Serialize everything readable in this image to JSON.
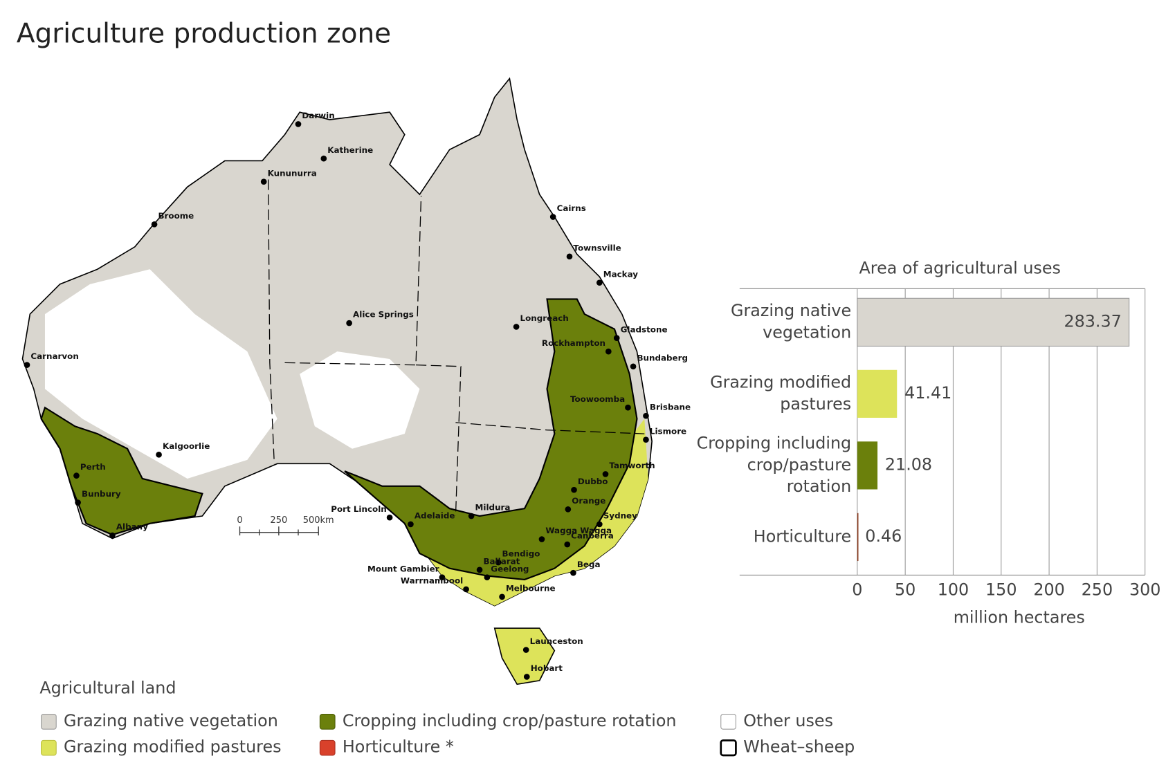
{
  "title": "Agriculture production zone",
  "map": {
    "cities": [
      "Darwin",
      "Katherine",
      "Kununurra",
      "Broome",
      "Cairns",
      "Townsville",
      "Mackay",
      "Alice Springs",
      "Longreach",
      "Gladstone",
      "Rockhampton",
      "Bundaberg",
      "Carnarvon",
      "Toowoomba",
      "Brisbane",
      "Lismore",
      "Kalgoorlie",
      "Tamworth",
      "Perth",
      "Dubbo",
      "Orange",
      "Bunbury",
      "Port Lincoln",
      "Adelaide",
      "Mildura",
      "Sydney",
      "Albany",
      "Wagga Wagga",
      "Canberra",
      "Bendigo",
      "Ballarat",
      "Mount Gambier",
      "Bega",
      "Geelong",
      "Melbourne",
      "Warrnambool",
      "Launceston",
      "Hobart"
    ],
    "scale": [
      "0",
      "250",
      "500km"
    ]
  },
  "chart_data": {
    "type": "bar",
    "orientation": "horizontal",
    "title": "Area of agricultural uses",
    "categories": [
      "Grazing native vegetation",
      "Grazing modified pastures",
      "Cropping including crop/pasture rotation",
      "Horticulture"
    ],
    "values": [
      283.37,
      41.41,
      21.08,
      0.46
    ],
    "colors": [
      "#d9d6cf",
      "#dde35a",
      "#6b800c",
      "#8b3a1e"
    ],
    "xlim": [
      0,
      300
    ],
    "xticks": [
      0,
      50,
      100,
      150,
      200,
      250,
      300
    ],
    "xlabel": "million hectares",
    "grid": true
  },
  "legend": {
    "title": "Agricultural land",
    "items": [
      {
        "label": "Grazing native vegetation",
        "color": "#d9d6cf",
        "outline": "#9a9a9a"
      },
      {
        "label": "Cropping including crop/pasture rotation",
        "color": "#6b800c",
        "outline": "#4d5e08"
      },
      {
        "label": "Other uses",
        "color": "#ffffff",
        "outline": "#9a9a9a"
      },
      {
        "label": "Grazing modified pastures",
        "color": "#dde35a",
        "outline": "#b9be3e"
      },
      {
        "label": "Horticulture *",
        "color": "#d9412b",
        "outline": "#a83020"
      },
      {
        "label": "Wheat–sheep",
        "color": "#ffffff",
        "outline": "#000000"
      }
    ]
  }
}
